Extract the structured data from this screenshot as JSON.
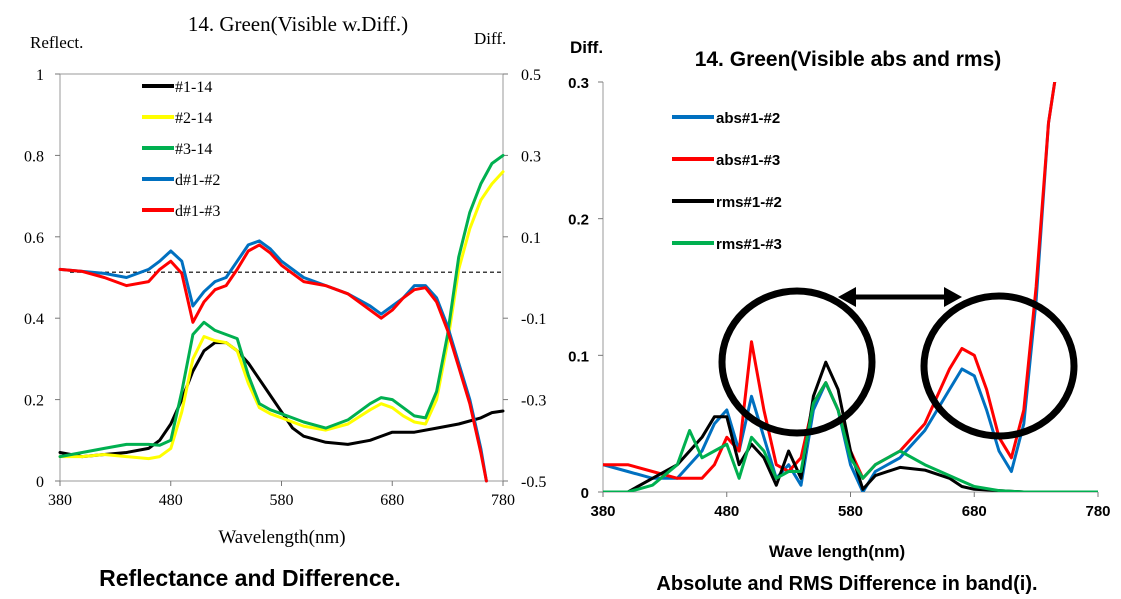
{
  "left_panel": {
    "title": "14. Green(Visible w.Diff.)",
    "left_axis_title": "Reflect.",
    "right_axis_title": "Diff.",
    "xlabel": "Wavelength(nm)",
    "caption": "Reflectance and Difference."
  },
  "right_panel": {
    "title": "14. Green(Visible abs and rms)",
    "y_axis_title": "Diff.",
    "xlabel": "Wave length(nm)",
    "caption": "Absolute and RMS Difference in band(i)."
  },
  "chart_data": [
    {
      "type": "line",
      "title": "14. Green(Visible w.Diff.)",
      "xlabel": "Wavelength(nm)",
      "ylabel": "Reflect.",
      "y2label": "Diff.",
      "xlim": [
        380,
        780
      ],
      "ylim": [
        0,
        1
      ],
      "y2lim": [
        -0.5,
        0.5
      ],
      "xticks": [
        "380",
        "480",
        "580",
        "680",
        "780"
      ],
      "yticks": [
        "0",
        "0.2",
        "0.4",
        "0.6",
        "0.8",
        "1"
      ],
      "y2ticks": [
        "-0.5",
        "-0.3",
        "-0.1",
        "0.1",
        "0.3",
        "0.5"
      ],
      "legend_position": "top-left",
      "reference_line": {
        "axis": "y2",
        "value": 0.013,
        "style": "dashed"
      },
      "series": [
        {
          "name": "#1-14",
          "color": "#000000",
          "axis": "y",
          "x": [
            380,
            400,
            420,
            440,
            460,
            470,
            480,
            490,
            500,
            510,
            520,
            530,
            540,
            550,
            560,
            570,
            580,
            590,
            600,
            620,
            640,
            660,
            680,
            700,
            720,
            740,
            760,
            770,
            780
          ],
          "y": [
            0.07,
            0.06,
            0.065,
            0.07,
            0.08,
            0.1,
            0.14,
            0.2,
            0.27,
            0.32,
            0.34,
            0.34,
            0.32,
            0.29,
            0.25,
            0.21,
            0.17,
            0.13,
            0.11,
            0.095,
            0.09,
            0.1,
            0.12,
            0.12,
            0.13,
            0.14,
            0.155,
            0.168,
            0.172
          ]
        },
        {
          "name": "#2-14",
          "color": "#ffff00",
          "axis": "y",
          "x": [
            380,
            400,
            420,
            440,
            460,
            470,
            480,
            490,
            500,
            510,
            520,
            530,
            540,
            550,
            560,
            570,
            580,
            590,
            600,
            620,
            640,
            660,
            670,
            680,
            690,
            700,
            710,
            720,
            730,
            740,
            750,
            760,
            770,
            780
          ],
          "y": [
            0.06,
            0.06,
            0.065,
            0.06,
            0.055,
            0.06,
            0.08,
            0.17,
            0.3,
            0.355,
            0.345,
            0.34,
            0.32,
            0.24,
            0.18,
            0.165,
            0.155,
            0.145,
            0.135,
            0.125,
            0.14,
            0.175,
            0.19,
            0.18,
            0.16,
            0.145,
            0.14,
            0.2,
            0.34,
            0.52,
            0.62,
            0.69,
            0.73,
            0.76
          ]
        },
        {
          "name": "#3-14",
          "color": "#00b050",
          "axis": "y",
          "x": [
            380,
            400,
            420,
            440,
            460,
            470,
            480,
            490,
            500,
            510,
            520,
            530,
            540,
            550,
            560,
            570,
            580,
            590,
            600,
            620,
            640,
            660,
            670,
            680,
            690,
            700,
            710,
            720,
            730,
            740,
            750,
            760,
            770,
            780
          ],
          "y": [
            0.06,
            0.07,
            0.08,
            0.09,
            0.09,
            0.088,
            0.1,
            0.22,
            0.36,
            0.39,
            0.37,
            0.36,
            0.35,
            0.26,
            0.19,
            0.175,
            0.165,
            0.155,
            0.145,
            0.13,
            0.15,
            0.19,
            0.205,
            0.2,
            0.18,
            0.16,
            0.155,
            0.22,
            0.36,
            0.55,
            0.66,
            0.73,
            0.78,
            0.8
          ]
        },
        {
          "name": "d#1-#2",
          "color": "#0070c0",
          "axis": "y2",
          "x": [
            380,
            400,
            420,
            440,
            460,
            470,
            480,
            490,
            500,
            510,
            520,
            530,
            540,
            550,
            560,
            570,
            580,
            600,
            620,
            640,
            660,
            670,
            680,
            690,
            700,
            710,
            720,
            730,
            740,
            750,
            760,
            765
          ],
          "y": [
            0.02,
            0.015,
            0.01,
            0.0,
            0.02,
            0.04,
            0.065,
            0.04,
            -0.07,
            -0.035,
            -0.01,
            0.0,
            0.04,
            0.08,
            0.09,
            0.07,
            0.04,
            0.0,
            -0.02,
            -0.04,
            -0.07,
            -0.09,
            -0.07,
            -0.05,
            -0.02,
            -0.02,
            -0.05,
            -0.12,
            -0.21,
            -0.3,
            -0.42,
            -0.5
          ]
        },
        {
          "name": "d#1-#3",
          "color": "#ff0000",
          "axis": "y2",
          "x": [
            380,
            400,
            420,
            440,
            460,
            470,
            480,
            490,
            500,
            510,
            520,
            530,
            540,
            550,
            560,
            570,
            580,
            600,
            620,
            640,
            660,
            670,
            680,
            690,
            700,
            710,
            720,
            730,
            740,
            750,
            760,
            765
          ],
          "y": [
            0.02,
            0.015,
            0.0,
            -0.02,
            -0.01,
            0.02,
            0.04,
            0.01,
            -0.11,
            -0.06,
            -0.03,
            -0.02,
            0.02,
            0.065,
            0.08,
            0.06,
            0.03,
            -0.01,
            -0.02,
            -0.04,
            -0.08,
            -0.1,
            -0.08,
            -0.05,
            -0.03,
            -0.025,
            -0.06,
            -0.13,
            -0.22,
            -0.31,
            -0.43,
            -0.5
          ]
        }
      ]
    },
    {
      "type": "line",
      "title": "14. Green(Visible abs and rms)",
      "xlabel": "Wave length(nm)",
      "ylabel": "Diff.",
      "xlim": [
        380,
        780
      ],
      "ylim": [
        0,
        0.3
      ],
      "xticks": [
        "380",
        "480",
        "580",
        "680",
        "780"
      ],
      "yticks": [
        "0",
        "0.1",
        "0.2",
        "0.3"
      ],
      "legend_position": "top-left",
      "annotations": [
        {
          "type": "circle",
          "around_x": 540,
          "around_y": 0.085
        },
        {
          "type": "circle",
          "around_x": 680,
          "around_y": 0.085
        },
        {
          "type": "double-arrow",
          "from_x": 560,
          "to_x": 650,
          "at_y": 0.143
        }
      ],
      "series": [
        {
          "name": "abs#1-#2",
          "color": "#0070c0",
          "x": [
            380,
            400,
            420,
            440,
            460,
            470,
            480,
            490,
            500,
            510,
            520,
            530,
            540,
            550,
            560,
            570,
            580,
            590,
            600,
            620,
            640,
            660,
            670,
            680,
            690,
            700,
            710,
            720,
            730,
            740,
            745
          ],
          "y": [
            0.02,
            0.015,
            0.01,
            0.01,
            0.03,
            0.05,
            0.06,
            0.03,
            0.07,
            0.04,
            0.01,
            0.02,
            0.005,
            0.06,
            0.08,
            0.06,
            0.02,
            0.0,
            0.015,
            0.025,
            0.045,
            0.075,
            0.09,
            0.085,
            0.06,
            0.03,
            0.015,
            0.05,
            0.14,
            0.27,
            0.3
          ]
        },
        {
          "name": "abs#1-#3",
          "color": "#ff0000",
          "x": [
            380,
            400,
            420,
            440,
            460,
            470,
            480,
            490,
            500,
            510,
            520,
            530,
            540,
            550,
            560,
            570,
            580,
            590,
            600,
            620,
            640,
            660,
            670,
            680,
            690,
            700,
            710,
            720,
            730,
            740,
            745
          ],
          "y": [
            0.02,
            0.02,
            0.015,
            0.01,
            0.01,
            0.02,
            0.04,
            0.03,
            0.11,
            0.06,
            0.02,
            0.015,
            0.025,
            0.065,
            0.08,
            0.06,
            0.03,
            0.01,
            0.02,
            0.03,
            0.05,
            0.09,
            0.105,
            0.1,
            0.075,
            0.04,
            0.025,
            0.06,
            0.15,
            0.27,
            0.3
          ]
        },
        {
          "name": "rms#1-#2",
          "color": "#000000",
          "x": [
            380,
            400,
            420,
            440,
            460,
            470,
            480,
            490,
            500,
            510,
            520,
            530,
            540,
            550,
            560,
            570,
            580,
            590,
            600,
            620,
            640,
            660,
            670,
            680,
            700,
            720,
            740,
            760,
            780
          ],
          "y": [
            0.0,
            0.0,
            0.01,
            0.02,
            0.04,
            0.055,
            0.055,
            0.02,
            0.035,
            0.025,
            0.005,
            0.03,
            0.01,
            0.07,
            0.095,
            0.075,
            0.03,
            0.002,
            0.012,
            0.018,
            0.016,
            0.01,
            0.004,
            0.002,
            0.001,
            0.0,
            0.0,
            0.0,
            0.0
          ]
        },
        {
          "name": "rms#1-#3",
          "color": "#00b050",
          "x": [
            380,
            400,
            420,
            440,
            450,
            460,
            470,
            480,
            490,
            500,
            510,
            520,
            530,
            540,
            550,
            560,
            570,
            580,
            590,
            600,
            620,
            640,
            660,
            670,
            680,
            700,
            720,
            740,
            760,
            780
          ],
          "y": [
            0.0,
            0.0,
            0.005,
            0.02,
            0.045,
            0.025,
            0.03,
            0.035,
            0.01,
            0.04,
            0.03,
            0.01,
            0.015,
            0.015,
            0.065,
            0.08,
            0.06,
            0.025,
            0.01,
            0.02,
            0.03,
            0.02,
            0.012,
            0.008,
            0.004,
            0.001,
            0.0,
            0.0,
            0.0,
            0.0
          ]
        }
      ]
    }
  ]
}
